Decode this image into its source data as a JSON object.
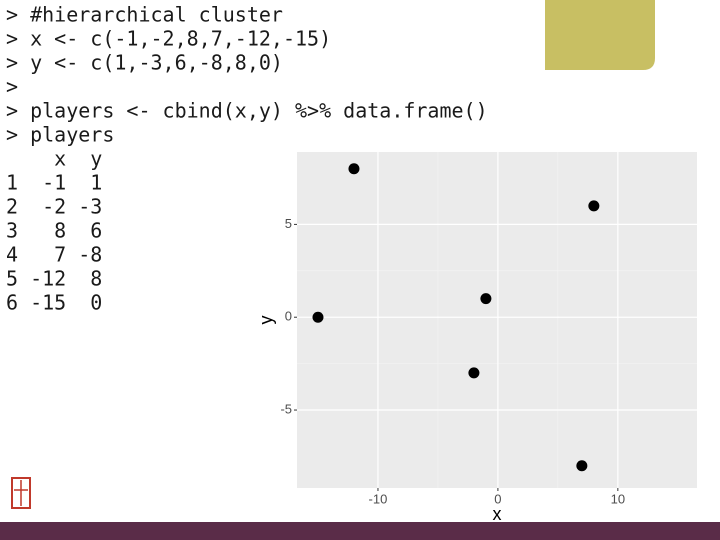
{
  "console": {
    "lines": [
      "> #hierarchical cluster",
      "> x <- c(-1,-2,8,7,-12,-15)",
      "> y <- c(1,-3,6,-8,8,0)",
      ">",
      "> players <- cbind(x,y) %>% data.frame()",
      "> players",
      "    x  y",
      "1  -1  1",
      "2  -2 -3",
      "3   8  6",
      "4   7 -8",
      "5 -12  8",
      "6 -15  0"
    ]
  },
  "chart_data": {
    "type": "scatter",
    "x_label": "x",
    "y_label": "y",
    "x": [
      -1,
      -2,
      8,
      7,
      -12,
      -15
    ],
    "values": [
      1,
      -3,
      6,
      -8,
      8,
      0
    ],
    "color": "#000000",
    "xlim": [
      -16.75,
      16.6
    ],
    "ylim": [
      -9.2,
      8.9
    ],
    "xticks": [
      -10,
      0,
      10
    ],
    "yticks": [
      -5,
      0,
      5
    ],
    "grid": true
  }
}
